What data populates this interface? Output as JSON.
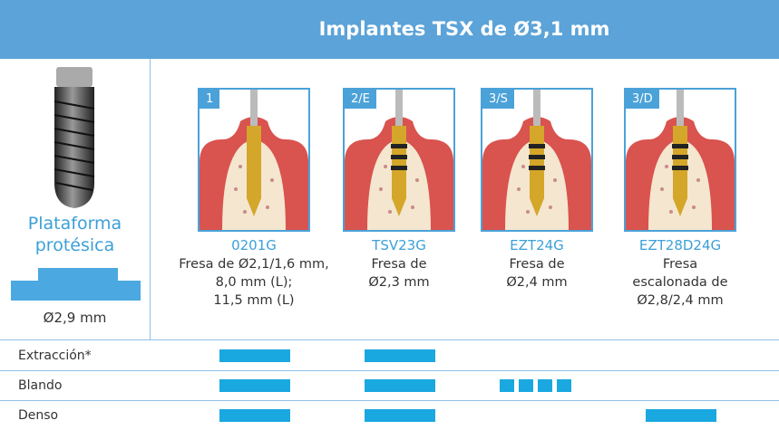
{
  "header": {
    "title": "Implantes TSX de Ø3,1 mm"
  },
  "platform": {
    "label_lines": [
      "Plataforma",
      "protésica"
    ],
    "diameter": "Ø2,9 mm"
  },
  "drills": [
    {
      "step": "1",
      "code": "0201G",
      "description": [
        "Fresa de Ø2,1/1,6 mm,",
        "8,0 mm (L);",
        "11,5 mm (L)"
      ]
    },
    {
      "step": "2/E",
      "code": "TSV23G",
      "description": [
        "Fresa de",
        "Ø2,3 mm"
      ]
    },
    {
      "step": "3/S",
      "code": "EZT24G",
      "description": [
        "Fresa de",
        "Ø2,4 mm"
      ]
    },
    {
      "step": "3/D",
      "code": "EZT28D24G",
      "description": [
        "Fresa",
        "escalonada de",
        "Ø2,8/2,4 mm"
      ]
    }
  ],
  "rows": [
    "Extracción*",
    "Blando",
    "Denso"
  ]
}
